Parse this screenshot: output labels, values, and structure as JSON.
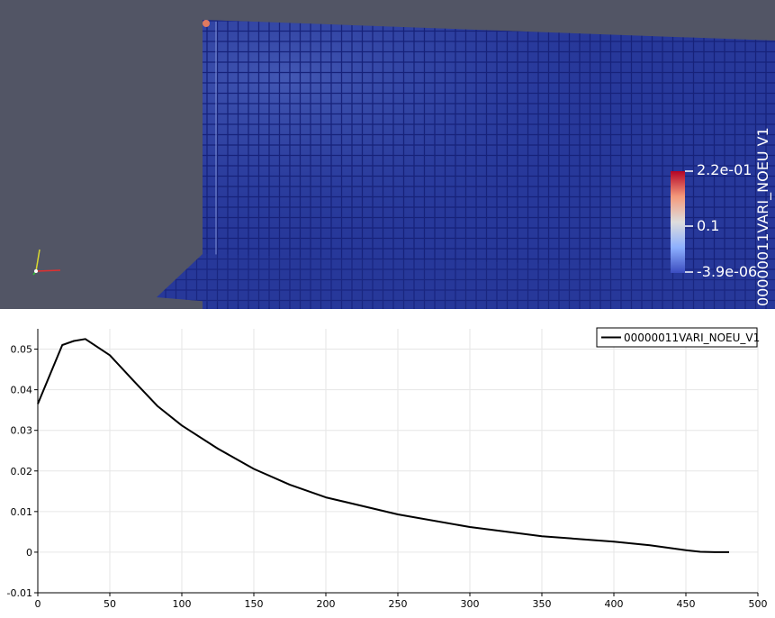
{
  "viewport": {
    "background": "#525565",
    "mesh_color": "#27389a",
    "grid_line_color": "#17227a",
    "colorbar": {
      "title": "00000011VARI_NOEU V1",
      "labels": [
        "2.2e-01",
        "0.1",
        "-3.9e-06"
      ],
      "colormap": [
        "#3b4cc0",
        "#8db0fe",
        "#dddddd",
        "#f49a7b",
        "#b40426"
      ]
    },
    "axes_icon": "orientation-axes-icon"
  },
  "chart_data": {
    "type": "line",
    "x": [
      0,
      17,
      25,
      33,
      50,
      67,
      83,
      100,
      125,
      150,
      175,
      200,
      250,
      300,
      350,
      400,
      425,
      450,
      460,
      470,
      480
    ],
    "series": [
      {
        "name": "00000011VARI_NOEU_V1",
        "color": "#000000",
        "values": [
          0.0365,
          0.051,
          0.052,
          0.0525,
          0.0485,
          0.042,
          0.036,
          0.0312,
          0.0255,
          0.0205,
          0.0166,
          0.0135,
          0.0093,
          0.0062,
          0.0039,
          0.0026,
          0.0017,
          0.0005,
          0.0001,
          0.0,
          0.0
        ]
      }
    ],
    "xlim": [
      0,
      500
    ],
    "ylim": [
      -0.01,
      0.055
    ],
    "xticks": [
      0,
      50,
      100,
      150,
      200,
      250,
      300,
      350,
      400,
      450,
      500
    ],
    "yticks": [
      -0.01,
      0,
      0.01,
      0.02,
      0.03,
      0.04,
      0.05
    ],
    "xtick_labels": [
      "0",
      "50",
      "100",
      "150",
      "200",
      "250",
      "300",
      "350",
      "400",
      "450",
      "500"
    ],
    "ytick_labels": [
      "-0.01",
      "0",
      "0.01",
      "0.02",
      "0.03",
      "0.04",
      "0.05"
    ],
    "grid": true,
    "legend_position": "top-right"
  }
}
